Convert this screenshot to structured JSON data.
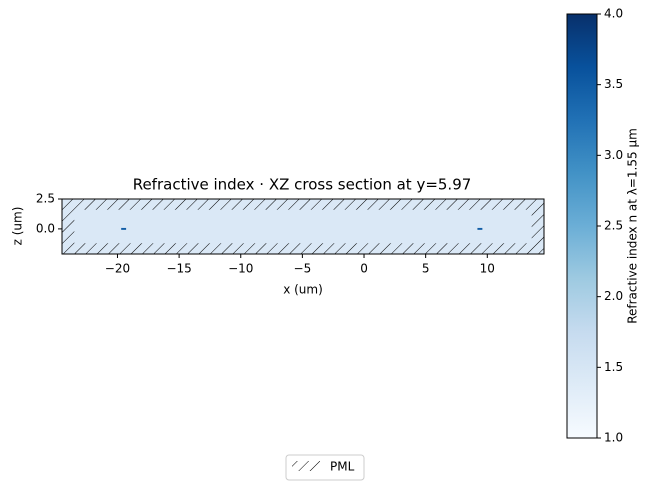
{
  "chart_data": {
    "type": "cross_section",
    "title": "Refractive index · XZ cross section at y=5.97",
    "xlabel": "x (um)",
    "ylabel": "z (um)",
    "xlim": [
      -24.5,
      14.6
    ],
    "ylim": [
      -2.1,
      2.5
    ],
    "xticks": [
      {
        "value": -20,
        "label": "−20"
      },
      {
        "value": -15,
        "label": "−15"
      },
      {
        "value": -10,
        "label": "−10"
      },
      {
        "value": -5,
        "label": "−5"
      },
      0,
      5,
      10
    ],
    "yticks": [
      {
        "value": 2.5,
        "label": "2.5"
      },
      {
        "value": 0,
        "label": "0.0"
      }
    ],
    "background_n": 1.44,
    "interior": {
      "x": [
        -23.5,
        13.6
      ],
      "z": [
        -1.2,
        1.6
      ]
    },
    "features": [
      {
        "x": [
          -19.7,
          -19.3
        ],
        "z": [
          -0.08,
          0.08
        ],
        "n": 3.48
      },
      {
        "x": [
          9.2,
          9.6
        ],
        "z": [
          -0.08,
          0.08
        ],
        "n": 3.48
      }
    ],
    "colormap": "Blues",
    "colorbar": {
      "label": "Refractive index n at λ=1.55 µm",
      "clim": [
        1,
        4
      ],
      "ticks": [
        {
          "value": 1,
          "label": "1.0"
        },
        1.5,
        {
          "value": 2,
          "label": "2.0"
        },
        2.5,
        {
          "value": 3,
          "label": "3.0"
        },
        3.5,
        {
          "value": 4,
          "label": "4.0"
        }
      ]
    },
    "legend": [
      "PML"
    ],
    "legend_location": "lower center"
  }
}
